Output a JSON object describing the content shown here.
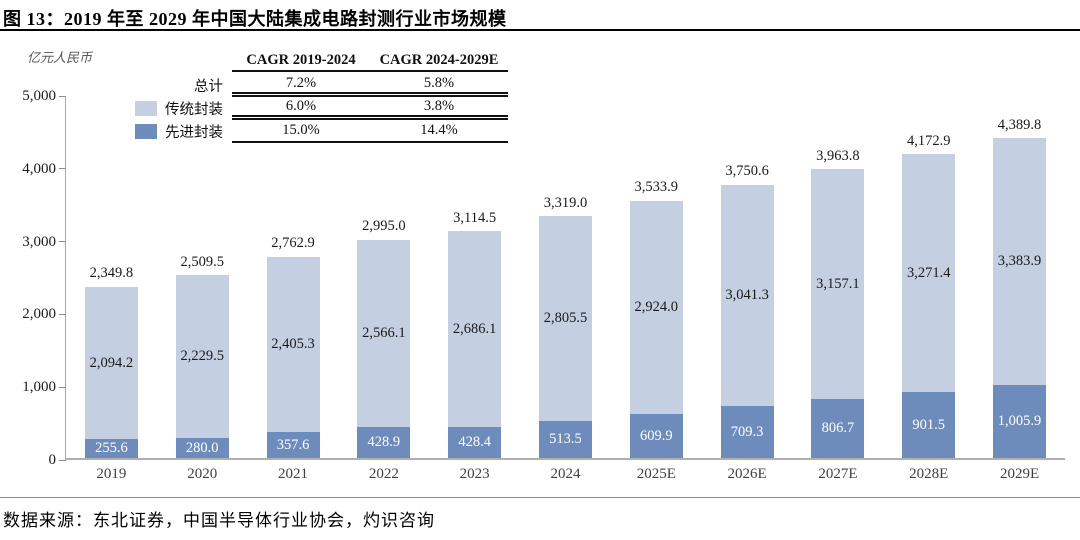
{
  "page": {
    "title": "图 13：2019 年至 2029 年中国大陆集成电路封测行业市场规模",
    "source_note": "数据来源：东北证券，中国半导体行业协会，灼识咨询"
  },
  "axis": {
    "unit_label": "亿元人民币",
    "ytick_labels": [
      "0",
      "1,000",
      "2,000",
      "3,000",
      "4,000",
      "5,000"
    ]
  },
  "cagr_table": {
    "col_headers": [
      "CAGR 2019-2024",
      "CAGR 2024-2029E"
    ],
    "rows": [
      {
        "label": "总计",
        "has_swatch": false,
        "values": [
          "7.2%",
          "5.8%"
        ]
      },
      {
        "label": "传统封装",
        "has_swatch": true,
        "swatch_color": "#c5cfe2",
        "values": [
          "6.0%",
          "3.8%"
        ]
      },
      {
        "label": "先进封装",
        "has_swatch": true,
        "swatch_color": "#6d8cbc",
        "values": [
          "15.0%",
          "14.4%"
        ]
      }
    ]
  },
  "chart_data": {
    "type": "bar",
    "stacked": true,
    "title": "图 13：2019 年至 2029 年中国大陆集成电路封测行业市场规模",
    "ylabel": "亿元人民币",
    "ylim": [
      0,
      5000
    ],
    "ytick_step": 1000,
    "grid": false,
    "legend_position": "top-left",
    "categories": [
      "2019",
      "2020",
      "2021",
      "2022",
      "2023",
      "2024",
      "2025E",
      "2026E",
      "2027E",
      "2028E",
      "2029E"
    ],
    "series": [
      {
        "name": "先进封装",
        "color": "#6d8cbc",
        "label_color": "#ffffff",
        "values": [
          255.6,
          280.0,
          357.6,
          428.9,
          428.4,
          513.5,
          609.9,
          709.3,
          806.7,
          901.5,
          1005.9
        ]
      },
      {
        "name": "传统封装",
        "color": "#c5cfe2",
        "label_color": "#1a1a1a",
        "values": [
          2094.2,
          2229.5,
          2405.3,
          2566.1,
          2686.1,
          2805.5,
          2924.0,
          3041.3,
          3157.1,
          3271.4,
          3383.9
        ]
      }
    ],
    "totals": [
      2349.8,
      2509.5,
      2762.9,
      2995.0,
      3114.5,
      3319.0,
      3533.9,
      3750.6,
      3963.8,
      4172.9,
      4389.8
    ]
  }
}
